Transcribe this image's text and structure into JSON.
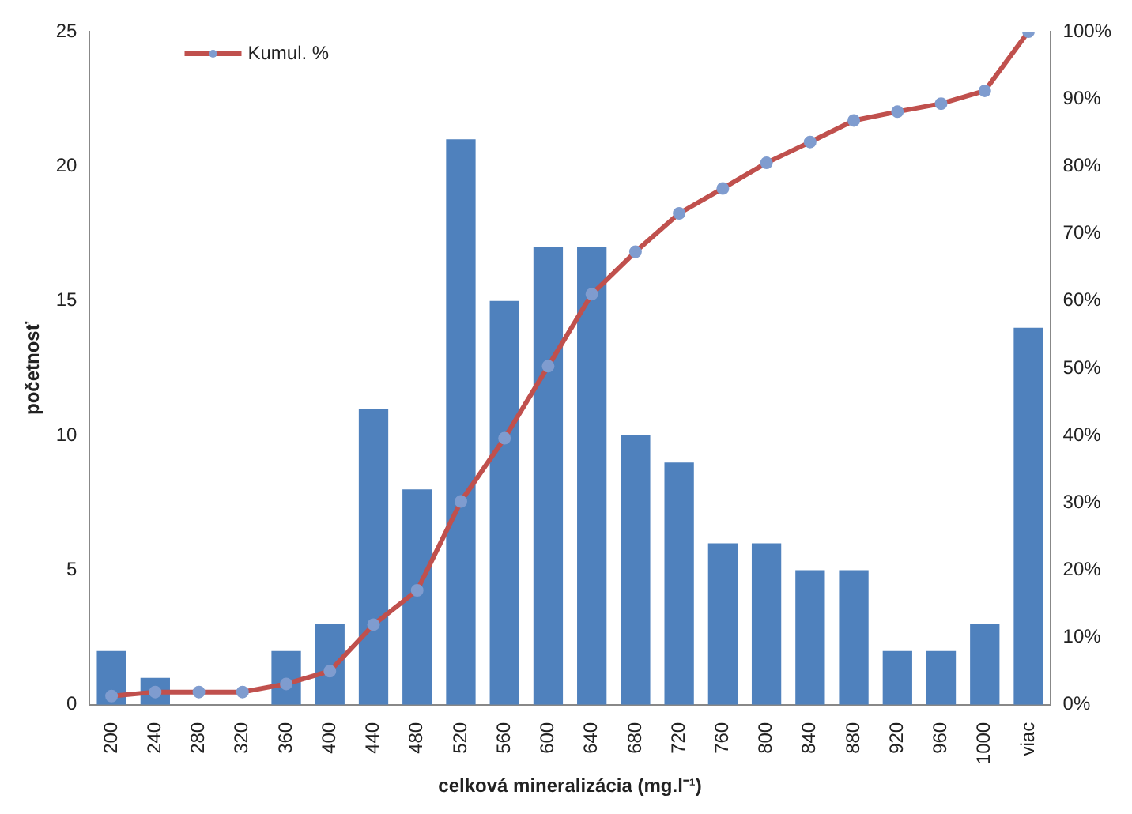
{
  "chart_data": {
    "type": "bar",
    "xlabel": "celková mineralizácia (mg.l⁻¹)",
    "ylabel": "početnosť",
    "categories": [
      "200",
      "240",
      "280",
      "320",
      "360",
      "400",
      "440",
      "480",
      "520",
      "560",
      "600",
      "640",
      "680",
      "720",
      "760",
      "800",
      "840",
      "880",
      "920",
      "960",
      "1000",
      "viac"
    ],
    "series": [
      {
        "color": "#4f81bd",
        "values": [
          2,
          1,
          0,
          0,
          2,
          3,
          11,
          8,
          21,
          15,
          17,
          17,
          10,
          9,
          6,
          6,
          5,
          5,
          2,
          2,
          3,
          14
        ]
      },
      {
        "type": "line",
        "name": "Kumul. %",
        "axis": "y2",
        "color": "#c0504d",
        "values": [
          1.3,
          1.9,
          1.9,
          1.9,
          3.1,
          5.0,
          11.9,
          17.0,
          30.2,
          39.6,
          50.3,
          61.0,
          67.3,
          73.0,
          76.7,
          80.5,
          83.6,
          86.8,
          88.1,
          89.3,
          91.2,
          100
        ]
      }
    ],
    "ylim": [
      0,
      25
    ],
    "yticks": [
      0,
      5,
      10,
      15,
      20,
      25
    ],
    "y2lim": [
      0,
      100
    ],
    "y2ticks": [
      {
        "value": 0,
        "label": "0%"
      },
      {
        "value": 10,
        "label": "10%"
      },
      {
        "value": 20,
        "label": "20%"
      },
      {
        "value": 30,
        "label": "30%"
      },
      {
        "value": 40,
        "label": "40%"
      },
      {
        "value": 50,
        "label": "50%"
      },
      {
        "value": 60,
        "label": "60%"
      },
      {
        "value": 70,
        "label": "70%"
      },
      {
        "value": 80,
        "label": "80%"
      },
      {
        "value": 90,
        "label": "90%"
      },
      {
        "value": 100,
        "label": "100%"
      }
    ],
    "legend": "top left",
    "marker": "circle",
    "line_style": "solid",
    "grid": false
  }
}
